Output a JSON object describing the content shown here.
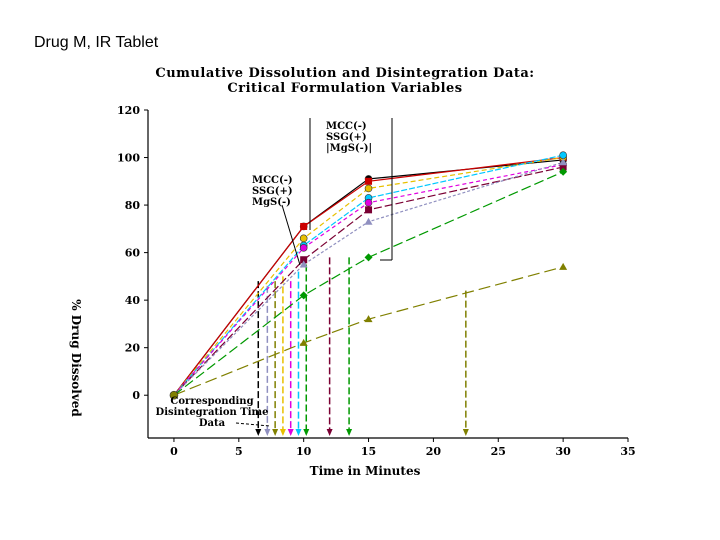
{
  "slide": {
    "title": "Drug M, IR Tablet"
  },
  "chart_data": {
    "type": "line",
    "title_line1": "Cumulative Dissolution and Disintegration Data:",
    "title_line2": "Critical Formulation Variables",
    "xlabel": "Time in Minutes",
    "ylabel": "% Drug Dissolved",
    "xlim": [
      -2,
      35
    ],
    "ylim": [
      -18,
      120
    ],
    "xticks": [
      0,
      5,
      10,
      15,
      20,
      25,
      30,
      35
    ],
    "yticks": [
      0,
      20,
      40,
      60,
      80,
      100,
      120
    ],
    "x": [
      0,
      10,
      15,
      30
    ],
    "series": [
      {
        "name": "s1",
        "color": "#000000",
        "marker": "circle",
        "values": [
          0,
          71,
          91,
          99
        ]
      },
      {
        "name": "s2",
        "color": "#cc0000",
        "marker": "square",
        "values": [
          0,
          71,
          90,
          100
        ]
      },
      {
        "name": "s3",
        "color": "#e8c000",
        "marker": "circle",
        "values": [
          0,
          66,
          87,
          100
        ]
      },
      {
        "name": "s4",
        "color": "#00c8ff",
        "marker": "circle",
        "values": [
          0,
          63,
          83,
          101
        ]
      },
      {
        "name": "s5",
        "color": "#e000e0",
        "marker": "circle",
        "values": [
          0,
          62,
          81,
          97
        ]
      },
      {
        "name": "s6",
        "color": "#7a0033",
        "marker": "square",
        "values": [
          0,
          57,
          78,
          96
        ]
      },
      {
        "name": "s7",
        "color": "#9090c0",
        "marker": "triangle",
        "values": [
          0,
          55,
          73,
          98
        ]
      },
      {
        "name": "s8",
        "color": "#009900",
        "marker": "diamond",
        "values": [
          0,
          42,
          58,
          94
        ]
      },
      {
        "name": "s9",
        "color": "#808000",
        "marker": "triangle",
        "values": [
          0,
          22,
          32,
          54
        ]
      }
    ],
    "disintegration_times": [
      {
        "x": 6.5,
        "color": "#000000",
        "from_y": 48
      },
      {
        "x": 7.2,
        "color": "#9090c0",
        "from_y": 46
      },
      {
        "x": 7.8,
        "color": "#808000",
        "from_y": 48
      },
      {
        "x": 8.4,
        "color": "#e8c000",
        "from_y": 50
      },
      {
        "x": 9.0,
        "color": "#e000e0",
        "from_y": 48
      },
      {
        "x": 9.6,
        "color": "#00c8ff",
        "from_y": 52
      },
      {
        "x": 10.2,
        "color": "#009900",
        "from_y": 55
      },
      {
        "x": 12.0,
        "color": "#7a0033",
        "from_y": 58
      },
      {
        "x": 13.5,
        "color": "#009900",
        "from_y": 58
      },
      {
        "x": 22.5,
        "color": "#808000",
        "from_y": 44
      }
    ],
    "annotations": {
      "group1": [
        "MCC(-)",
        "SSG(+)",
        "MgS(-)"
      ],
      "group2": [
        "MCC(-)",
        "SSG(+)",
        "|MgS(-)|"
      ],
      "bottom": [
        "Corresponding",
        "Disintegration Time",
        "Data"
      ]
    }
  }
}
